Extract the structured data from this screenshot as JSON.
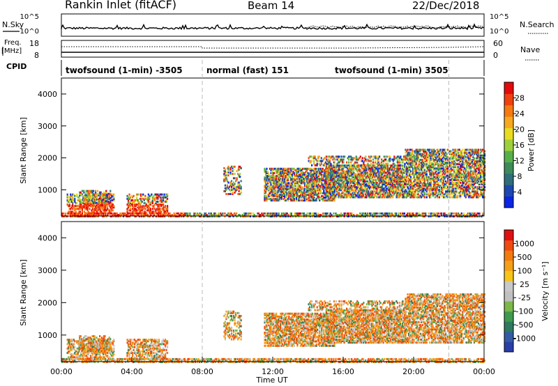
{
  "header": {
    "station": "Rankin Inlet (fitACF)",
    "beam": "Beam 14",
    "date": "22/Dec/2018"
  },
  "top_panel": {
    "left_label": "N.Sky",
    "right_label": "N.Search",
    "left_ticks": [
      "10^5",
      "10^0"
    ],
    "right_ticks": [
      "10^5",
      "10^0"
    ]
  },
  "freq_panel": {
    "left_label_1": "Freq.",
    "left_label_2": "[MHz]",
    "right_label": "Nave",
    "left_ticks": [
      "18",
      "8"
    ],
    "right_ticks": [
      "60",
      "0"
    ]
  },
  "cpid": {
    "label": "CPID",
    "segments": [
      {
        "text": "twofsound (1-min) -3505",
        "start_hr": 0,
        "end_hr": 8.0
      },
      {
        "text": "normal (fast) 151",
        "start_hr": 8.0,
        "end_hr": 22.0
      },
      {
        "text": "twofsound (1-min) 3505",
        "start_hr": 22.0,
        "end_hr": 24.0
      }
    ],
    "boundary_hours": [
      8.0,
      22.0
    ]
  },
  "chart_data": [
    {
      "type": "heatmap",
      "ylabel": "Slant Range [km]",
      "ylim": [
        180,
        4500
      ],
      "yticks": [
        1000,
        2000,
        3000,
        4000
      ],
      "colorbar": {
        "label": "Power [dB]",
        "ticks": [
          "4",
          "8",
          "12",
          "16",
          "20",
          "24",
          "28"
        ],
        "colors": [
          "#0b24e6",
          "#1e48b0",
          "#2f6e7a",
          "#3e8a5a",
          "#56b04a",
          "#9ed03c",
          "#e8dc20",
          "#f6a820",
          "#f67a10",
          "#f04010",
          "#e40a0a"
        ]
      }
    },
    {
      "type": "heatmap",
      "ylabel": "Slant Range [km]",
      "ylim": [
        180,
        4500
      ],
      "yticks": [
        1000,
        2000,
        3000,
        4000
      ],
      "colorbar": {
        "label": "Velocity [m s⁻¹]",
        "ticks": [
          "1000",
          "500",
          "100",
          "25",
          "-25",
          "-100",
          "-500",
          "-1000"
        ],
        "colors": [
          "#2a3ea8",
          "#335ca4",
          "#2e7a5e",
          "#3f9a4e",
          "#7ab84a",
          "#c0c0c0",
          "#c8c8c8",
          "#f8c418",
          "#f4a018",
          "#f47a10",
          "#f04a10",
          "#e01010"
        ]
      }
    }
  ],
  "x_axis": {
    "label": "Time UT",
    "ticks": [
      "00:00",
      "04:00",
      "08:00",
      "12:00",
      "16:00",
      "20:00",
      "00:00"
    ]
  }
}
